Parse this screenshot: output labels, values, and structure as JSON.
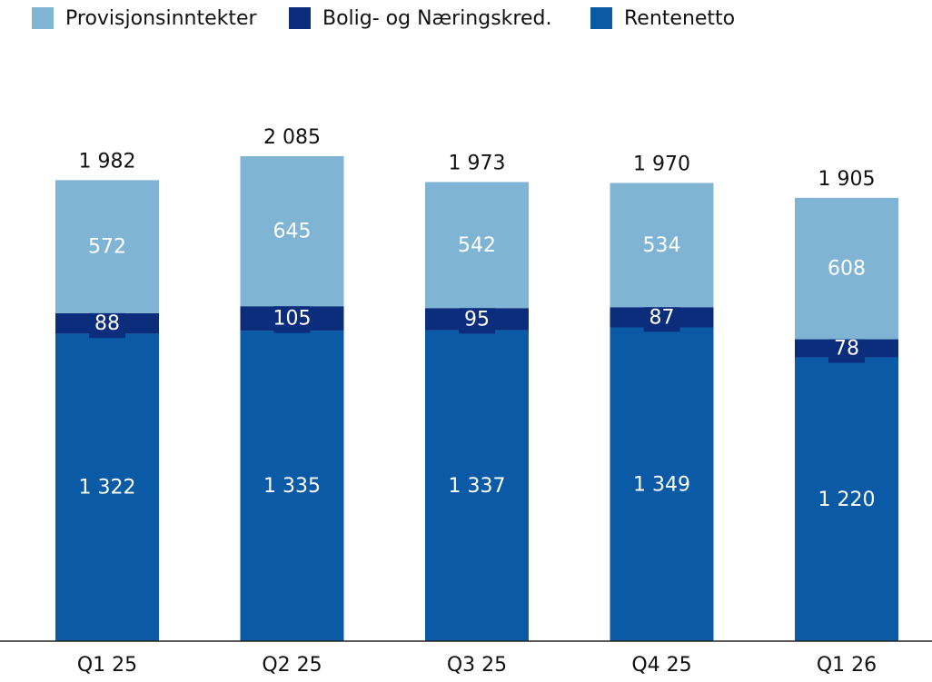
{
  "chart_data": {
    "type": "stacked_bar",
    "categories": [
      "Q1 25",
      "Q2 25",
      "Q3 25",
      "Q4 25",
      "Q1 26"
    ],
    "series": [
      {
        "name": "Rentenetto",
        "color": "#0b5aa5",
        "values": [
          1322,
          1335,
          1337,
          1349,
          1220
        ],
        "value_labels": [
          "1 322",
          "1 335",
          "1 337",
          "1 349",
          "1 220"
        ]
      },
      {
        "name": "Bolig- og Næringskred.",
        "color": "#0c2d7c",
        "values": [
          88,
          105,
          95,
          87,
          78
        ]
      },
      {
        "name": "Provisjonsinntekter",
        "color": "#7fb4d4",
        "values": [
          572,
          645,
          542,
          534,
          608
        ]
      }
    ],
    "totals": [
      1982,
      2085,
      1973,
      1970,
      1905
    ],
    "total_labels": [
      "1 982",
      "2 085",
      "1 973",
      "1 970",
      "1 905"
    ]
  }
}
